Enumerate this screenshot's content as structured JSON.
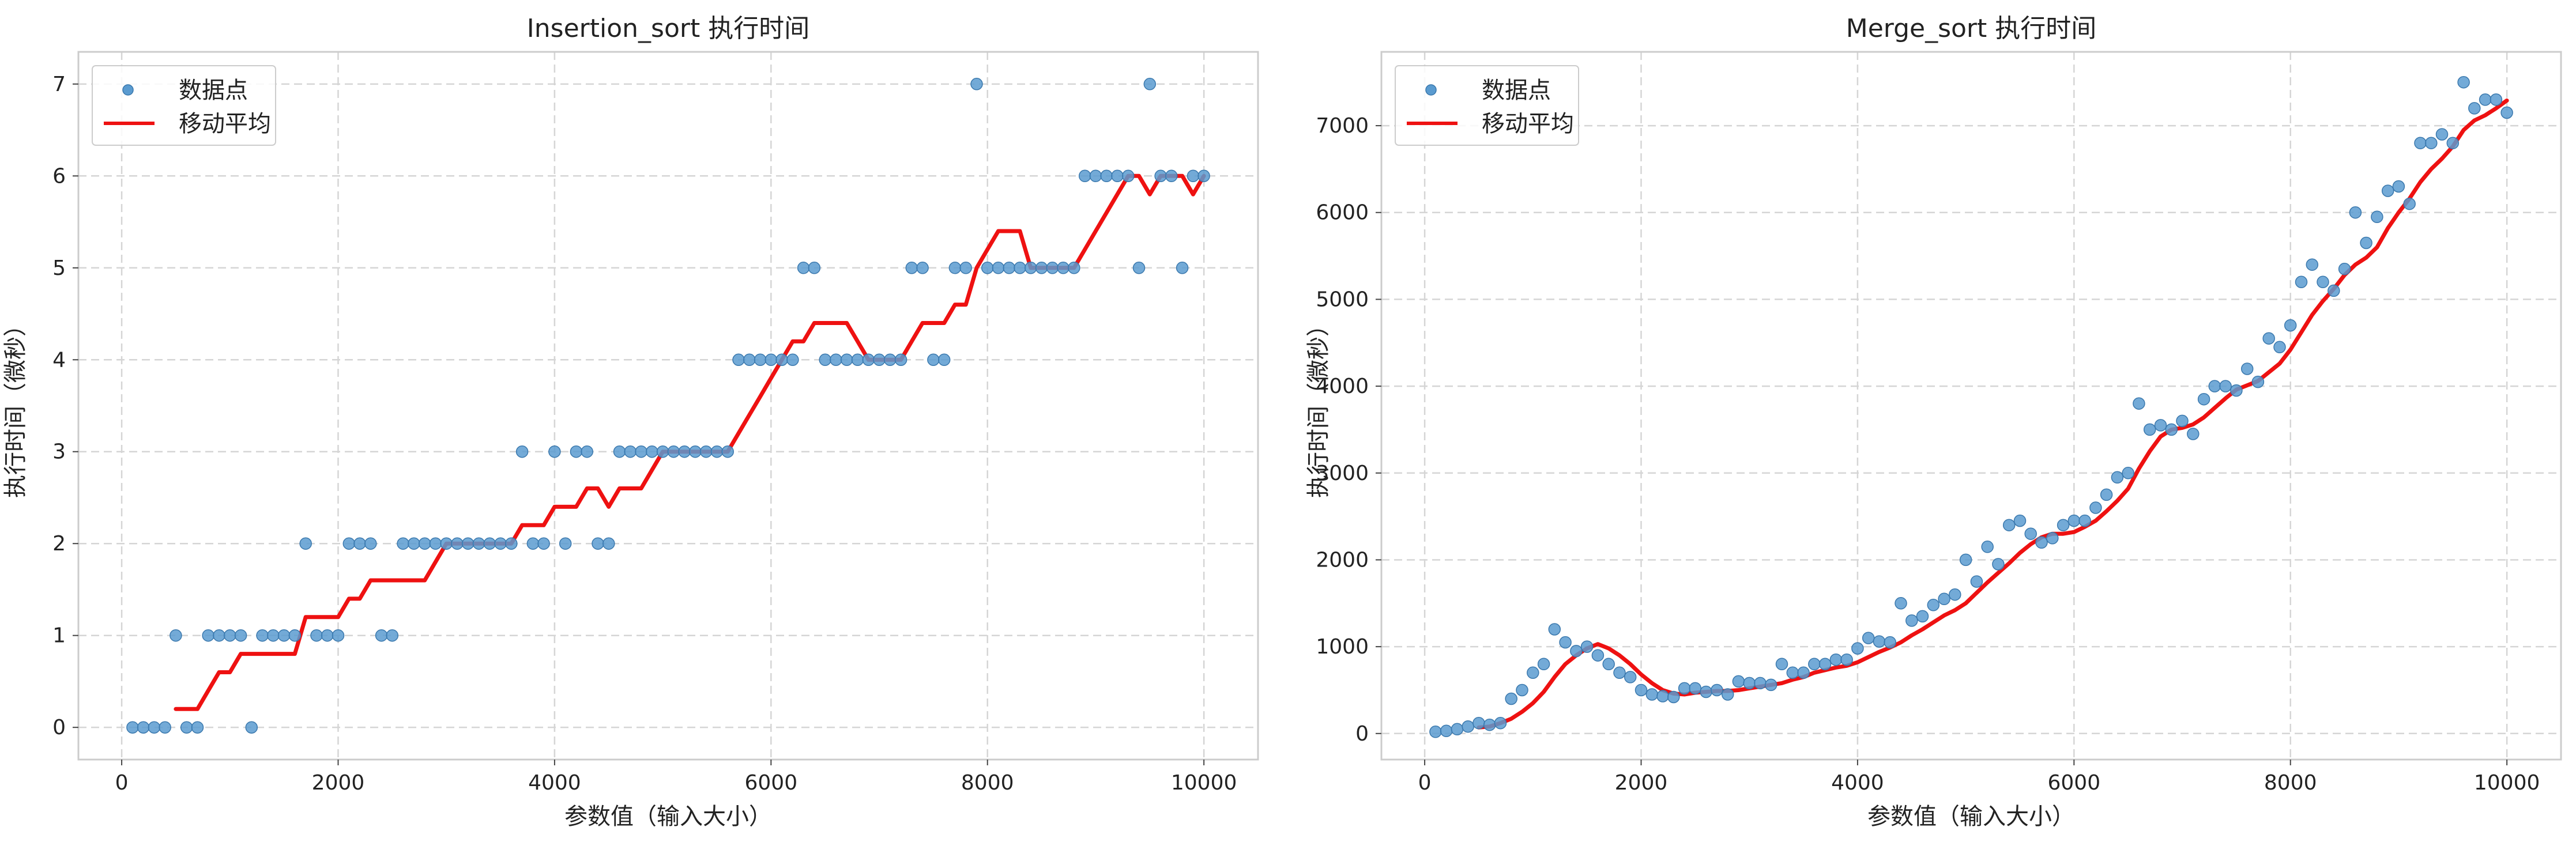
{
  "chart_data": [
    {
      "type": "scatter",
      "title": "Insertion_sort 执行时间",
      "xlabel": "参数值（输入大小）",
      "ylabel": "执行时间（微秒）",
      "xlim": [
        -400,
        10500
      ],
      "ylim": [
        -0.35,
        7.35
      ],
      "xticks": [
        0,
        2000,
        4000,
        6000,
        8000,
        10000
      ],
      "yticks": [
        0,
        1,
        2,
        3,
        4,
        5,
        6,
        7
      ],
      "grid": true,
      "grid_style": "dashed",
      "legend_position": "top-left",
      "series": [
        {
          "name": "数据点",
          "kind": "scatter",
          "color": "#5a9bd0",
          "x": [
            100,
            200,
            300,
            400,
            500,
            600,
            700,
            800,
            900,
            1000,
            1100,
            1200,
            1300,
            1400,
            1500,
            1600,
            1700,
            1800,
            1900,
            2000,
            2100,
            2200,
            2300,
            2400,
            2500,
            2600,
            2700,
            2800,
            2900,
            3000,
            3100,
            3200,
            3300,
            3400,
            3500,
            3600,
            3700,
            3800,
            3900,
            4000,
            4100,
            4200,
            4300,
            4400,
            4500,
            4600,
            4700,
            4800,
            4900,
            5000,
            5100,
            5200,
            5300,
            5400,
            5500,
            5600,
            5700,
            5800,
            5900,
            6000,
            6100,
            6200,
            6300,
            6400,
            6500,
            6600,
            6700,
            6800,
            6900,
            7000,
            7100,
            7200,
            7300,
            7400,
            7500,
            7600,
            7700,
            7800,
            7900,
            8000,
            8100,
            8200,
            8300,
            8400,
            8500,
            8600,
            8700,
            8800,
            8900,
            9000,
            9100,
            9200,
            9300,
            9400,
            9500,
            9600,
            9700,
            9800,
            9900,
            10000
          ],
          "y": [
            0,
            0,
            0,
            0,
            1,
            0,
            0,
            1,
            1,
            1,
            1,
            0,
            1,
            1,
            1,
            1,
            2,
            1,
            1,
            1,
            2,
            2,
            2,
            1,
            1,
            2,
            2,
            2,
            2,
            2,
            2,
            2,
            2,
            2,
            2,
            2,
            3,
            2,
            2,
            3,
            2,
            3,
            3,
            2,
            2,
            3,
            3,
            3,
            3,
            3,
            3,
            3,
            3,
            3,
            3,
            3,
            4,
            4,
            4,
            4,
            4,
            4,
            5,
            5,
            4,
            4,
            4,
            4,
            4,
            4,
            4,
            4,
            5,
            5,
            4,
            4,
            5,
            5,
            7,
            5,
            5,
            5,
            5,
            5,
            5,
            5,
            5,
            5,
            6,
            6,
            6,
            6,
            6,
            5,
            7,
            6,
            6,
            5,
            6,
            6
          ]
        },
        {
          "name": "移动平均",
          "kind": "line",
          "color": "#ee1111",
          "x": [
            500,
            600,
            700,
            800,
            900,
            1000,
            1100,
            1200,
            1300,
            1400,
            1500,
            1600,
            1700,
            1800,
            1900,
            2000,
            2100,
            2200,
            2300,
            2400,
            2500,
            2600,
            2700,
            2800,
            2900,
            3000,
            3100,
            3200,
            3300,
            3400,
            3500,
            3600,
            3700,
            3800,
            3900,
            4000,
            4100,
            4200,
            4300,
            4400,
            4500,
            4600,
            4700,
            4800,
            4900,
            5000,
            5100,
            5200,
            5300,
            5400,
            5500,
            5600,
            5700,
            5800,
            5900,
            6000,
            6100,
            6200,
            6300,
            6400,
            6500,
            6600,
            6700,
            6800,
            6900,
            7000,
            7100,
            7200,
            7300,
            7400,
            7500,
            7600,
            7700,
            7800,
            7900,
            8000,
            8100,
            8200,
            8300,
            8400,
            8500,
            8600,
            8700,
            8800,
            8900,
            9000,
            9100,
            9200,
            9300,
            9400,
            9500,
            9600,
            9700,
            9800,
            9900,
            10000
          ],
          "y": [
            0.2,
            0.2,
            0.2,
            0.4,
            0.6,
            0.6,
            0.8,
            0.8,
            0.8,
            0.8,
            0.8,
            0.8,
            1.2,
            1.2,
            1.2,
            1.2,
            1.4,
            1.4,
            1.6,
            1.6,
            1.6,
            1.6,
            1.6,
            1.6,
            1.8,
            2.0,
            2.0,
            2.0,
            2.0,
            2.0,
            2.0,
            2.0,
            2.2,
            2.2,
            2.2,
            2.4,
            2.4,
            2.4,
            2.6,
            2.6,
            2.4,
            2.6,
            2.6,
            2.6,
            2.8,
            3.0,
            3.0,
            3.0,
            3.0,
            3.0,
            3.0,
            3.0,
            3.2,
            3.4,
            3.6,
            3.8,
            4.0,
            4.2,
            4.2,
            4.4,
            4.4,
            4.4,
            4.4,
            4.2,
            4.0,
            4.0,
            4.0,
            4.0,
            4.2,
            4.4,
            4.4,
            4.4,
            4.6,
            4.6,
            5.0,
            5.2,
            5.4,
            5.4,
            5.4,
            5.0,
            5.0,
            5.0,
            5.0,
            5.0,
            5.2,
            5.4,
            5.6,
            5.8,
            6.0,
            6.0,
            5.8,
            6.0,
            6.0,
            6.0,
            5.8,
            6.0
          ]
        }
      ]
    },
    {
      "type": "scatter",
      "title": "Merge_sort 执行时间",
      "xlabel": "参数值（输入大小）",
      "ylabel": "执行时间（微秒）",
      "xlim": [
        -400,
        10500
      ],
      "ylim": [
        -300,
        7850
      ],
      "xticks": [
        0,
        2000,
        4000,
        6000,
        8000,
        10000
      ],
      "yticks": [
        0,
        1000,
        2000,
        3000,
        4000,
        5000,
        6000,
        7000
      ],
      "grid": true,
      "grid_style": "dashed",
      "legend_position": "top-left",
      "series": [
        {
          "name": "数据点",
          "kind": "scatter",
          "color": "#5a9bd0",
          "x": [
            100,
            200,
            300,
            400,
            500,
            600,
            700,
            800,
            900,
            1000,
            1100,
            1200,
            1300,
            1400,
            1500,
            1600,
            1700,
            1800,
            1900,
            2000,
            2100,
            2200,
            2300,
            2400,
            2500,
            2600,
            2700,
            2800,
            2900,
            3000,
            3100,
            3200,
            3300,
            3400,
            3500,
            3600,
            3700,
            3800,
            3900,
            4000,
            4100,
            4200,
            4300,
            4400,
            4500,
            4600,
            4700,
            4800,
            4900,
            5000,
            5100,
            5200,
            5300,
            5400,
            5500,
            5600,
            5700,
            5800,
            5900,
            6000,
            6100,
            6200,
            6300,
            6400,
            6500,
            6600,
            6700,
            6800,
            6900,
            7000,
            7100,
            7200,
            7300,
            7400,
            7500,
            7600,
            7700,
            7800,
            7900,
            8000,
            8100,
            8200,
            8300,
            8400,
            8500,
            8600,
            8700,
            8800,
            8900,
            9000,
            9100,
            9200,
            9300,
            9400,
            9500,
            9600,
            9700,
            9800,
            9900,
            10000
          ],
          "y": [
            20,
            30,
            50,
            80,
            120,
            100,
            120,
            400,
            500,
            700,
            800,
            1200,
            1050,
            950,
            1000,
            900,
            800,
            700,
            650,
            500,
            450,
            430,
            420,
            520,
            520,
            480,
            500,
            450,
            600,
            580,
            580,
            560,
            800,
            700,
            700,
            800,
            800,
            850,
            850,
            980,
            1100,
            1060,
            1050,
            1500,
            1300,
            1350,
            1480,
            1550,
            1600,
            2000,
            1750,
            2150,
            1950,
            2400,
            2450,
            2300,
            2200,
            2250,
            2400,
            2450,
            2450,
            2600,
            2750,
            2950,
            3000,
            3800,
            3500,
            3550,
            3500,
            3600,
            3450,
            3850,
            4000,
            4000,
            3950,
            4200,
            4050,
            4550,
            4450,
            4700,
            5200,
            5400,
            5200,
            5100,
            5350,
            6000,
            5650,
            5950,
            6250,
            6300,
            6100,
            6800,
            6800,
            6900,
            6800,
            7500,
            7200,
            7300,
            7300,
            7150
          ]
        },
        {
          "name": "移动平均",
          "kind": "line",
          "color": "#ee1111",
          "x": [
            500,
            600,
            700,
            800,
            900,
            1000,
            1100,
            1200,
            1300,
            1400,
            1500,
            1600,
            1700,
            1800,
            1900,
            2000,
            2100,
            2200,
            2300,
            2400,
            2500,
            2600,
            2700,
            2800,
            2900,
            3000,
            3100,
            3200,
            3300,
            3400,
            3500,
            3600,
            3700,
            3800,
            3900,
            4000,
            4100,
            4200,
            4300,
            4400,
            4500,
            4600,
            4700,
            4800,
            4900,
            5000,
            5100,
            5200,
            5300,
            5400,
            5500,
            5600,
            5700,
            5800,
            5900,
            6000,
            6100,
            6200,
            6300,
            6400,
            6500,
            6600,
            6700,
            6800,
            6900,
            7000,
            7100,
            7200,
            7300,
            7400,
            7500,
            7600,
            7700,
            7800,
            7900,
            8000,
            8100,
            8200,
            8300,
            8400,
            8500,
            8600,
            8700,
            8800,
            8900,
            9000,
            9100,
            9200,
            9300,
            9400,
            9500,
            9600,
            9700,
            9800,
            9900,
            10000
          ],
          "y": [
            70,
            80,
            120,
            170,
            250,
            350,
            480,
            650,
            800,
            900,
            980,
            1030,
            980,
            900,
            800,
            680,
            580,
            500,
            460,
            450,
            470,
            480,
            490,
            490,
            500,
            520,
            540,
            560,
            580,
            620,
            650,
            700,
            730,
            760,
            780,
            820,
            880,
            940,
            990,
            1050,
            1130,
            1200,
            1280,
            1360,
            1420,
            1500,
            1620,
            1740,
            1850,
            1960,
            2080,
            2180,
            2260,
            2300,
            2300,
            2320,
            2380,
            2450,
            2560,
            2680,
            2820,
            3050,
            3250,
            3420,
            3500,
            3520,
            3560,
            3640,
            3750,
            3860,
            3960,
            4010,
            4060,
            4160,
            4260,
            4420,
            4620,
            4820,
            4980,
            5120,
            5280,
            5400,
            5480,
            5600,
            5820,
            6000,
            6160,
            6350,
            6500,
            6620,
            6760,
            6950,
            7060,
            7120,
            7200,
            7290
          ]
        }
      ]
    }
  ]
}
